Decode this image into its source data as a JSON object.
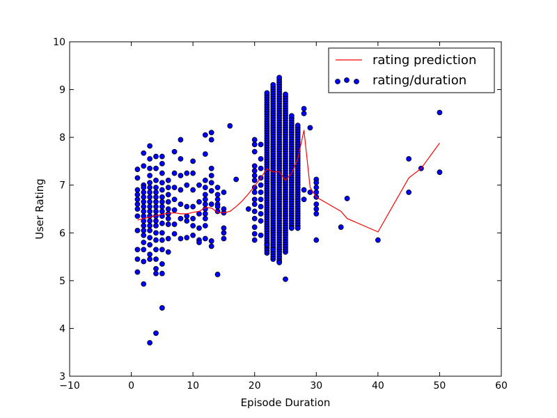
{
  "chart_data": {
    "type": "scatter",
    "title": "",
    "xlabel": "Episode Duration",
    "ylabel": "User Rating",
    "xlim": [
      -10,
      60
    ],
    "ylim": [
      3,
      10
    ],
    "xticks": [
      -10,
      0,
      10,
      20,
      30,
      40,
      50,
      60
    ],
    "yticks": [
      3,
      4,
      5,
      6,
      7,
      8,
      9,
      10
    ],
    "xtick_labels": [
      "−10",
      "0",
      "10",
      "20",
      "30",
      "40",
      "50",
      "60"
    ],
    "ytick_labels": [
      "3",
      "4",
      "5",
      "6",
      "7",
      "8",
      "9",
      "10"
    ],
    "grid": false,
    "legend_position": "top-right",
    "colors": {
      "prediction": "#ff0000",
      "points": "#0000ff",
      "point_edge": "#000000"
    },
    "series": [
      {
        "name": "rating prediction",
        "type": "line",
        "x": [
          1,
          2,
          3,
          4,
          5,
          6,
          7,
          8,
          9,
          10,
          11,
          12,
          13,
          14,
          15,
          16,
          17,
          18,
          19,
          20,
          21,
          22,
          23,
          24,
          25,
          26,
          27,
          28,
          29,
          30,
          32,
          34,
          35,
          40,
          45,
          47,
          50
        ],
        "y": [
          6.27,
          6.3,
          6.33,
          6.36,
          6.39,
          6.41,
          6.42,
          6.4,
          6.4,
          6.43,
          6.45,
          6.53,
          6.52,
          6.43,
          6.42,
          6.45,
          6.55,
          6.67,
          6.82,
          6.98,
          7.15,
          7.34,
          7.28,
          7.28,
          7.1,
          7.25,
          7.55,
          8.15,
          6.95,
          6.75,
          6.6,
          6.45,
          6.3,
          6.02,
          7.15,
          7.35,
          7.88
        ]
      },
      {
        "name": "rating/duration",
        "type": "scatter",
        "points": [
          [
            1,
            7.33
          ],
          [
            1,
            7.15
          ],
          [
            1,
            6.9
          ],
          [
            1,
            6.8
          ],
          [
            1,
            6.7
          ],
          [
            1,
            6.6
          ],
          [
            1,
            6.5
          ],
          [
            1,
            6.35
          ],
          [
            1,
            6.05
          ],
          [
            1,
            5.65
          ],
          [
            1,
            5.45
          ],
          [
            1,
            5.18
          ],
          [
            2,
            7.67
          ],
          [
            2,
            7.4
          ],
          [
            2,
            7.0
          ],
          [
            2,
            6.95
          ],
          [
            2,
            6.85
          ],
          [
            2,
            6.75
          ],
          [
            2,
            6.65
          ],
          [
            2,
            6.55
          ],
          [
            2,
            6.45
          ],
          [
            2,
            6.35
          ],
          [
            2,
            6.25
          ],
          [
            2,
            6.15
          ],
          [
            2,
            6.05
          ],
          [
            2,
            5.95
          ],
          [
            2,
            5.8
          ],
          [
            2,
            5.65
          ],
          [
            2,
            5.4
          ],
          [
            2,
            4.93
          ],
          [
            3,
            7.82
          ],
          [
            3,
            7.55
          ],
          [
            3,
            7.35
          ],
          [
            3,
            7.2
          ],
          [
            3,
            7.05
          ],
          [
            3,
            6.95
          ],
          [
            3,
            6.85
          ],
          [
            3,
            6.75
          ],
          [
            3,
            6.65
          ],
          [
            3,
            6.55
          ],
          [
            3,
            6.45
          ],
          [
            3,
            6.35
          ],
          [
            3,
            6.25
          ],
          [
            3,
            6.15
          ],
          [
            3,
            6.05
          ],
          [
            3,
            5.9
          ],
          [
            3,
            5.75
          ],
          [
            3,
            5.55
          ],
          [
            3,
            5.45
          ],
          [
            3,
            3.7
          ],
          [
            4,
            7.6
          ],
          [
            4,
            7.35
          ],
          [
            4,
            7.1
          ],
          [
            4,
            6.95
          ],
          [
            4,
            6.85
          ],
          [
            4,
            6.75
          ],
          [
            4,
            6.65
          ],
          [
            4,
            6.55
          ],
          [
            4,
            6.45
          ],
          [
            4,
            6.35
          ],
          [
            4,
            6.25
          ],
          [
            4,
            6.15
          ],
          [
            4,
            6.0
          ],
          [
            4,
            5.85
          ],
          [
            4,
            5.65
          ],
          [
            4,
            5.45
          ],
          [
            4,
            5.25
          ],
          [
            4,
            5.15
          ],
          [
            4,
            3.9
          ],
          [
            5,
            7.6
          ],
          [
            5,
            7.45
          ],
          [
            5,
            7.25
          ],
          [
            5,
            7.05
          ],
          [
            5,
            6.9
          ],
          [
            5,
            6.75
          ],
          [
            5,
            6.65
          ],
          [
            5,
            6.55
          ],
          [
            5,
            6.45
          ],
          [
            5,
            6.35
          ],
          [
            5,
            6.2
          ],
          [
            5,
            6.0
          ],
          [
            5,
            5.85
          ],
          [
            5,
            5.65
          ],
          [
            5,
            5.35
          ],
          [
            5,
            5.15
          ],
          [
            5,
            4.43
          ],
          [
            6,
            7.1
          ],
          [
            6,
            6.95
          ],
          [
            6,
            6.8
          ],
          [
            6,
            6.65
          ],
          [
            6,
            6.5
          ],
          [
            6,
            6.4
          ],
          [
            6,
            6.3
          ],
          [
            6,
            6.18
          ],
          [
            6,
            5.88
          ],
          [
            6,
            5.6
          ],
          [
            7,
            7.7
          ],
          [
            7,
            7.25
          ],
          [
            7,
            6.95
          ],
          [
            7,
            6.7
          ],
          [
            7,
            6.48
          ],
          [
            7,
            6.18
          ],
          [
            7,
            5.98
          ],
          [
            8,
            7.95
          ],
          [
            8,
            7.55
          ],
          [
            8,
            7.2
          ],
          [
            8,
            6.9
          ],
          [
            8,
            6.6
          ],
          [
            8,
            6.3
          ],
          [
            8,
            5.88
          ],
          [
            9,
            7.25
          ],
          [
            9,
            7.0
          ],
          [
            9,
            6.55
          ],
          [
            9,
            6.35
          ],
          [
            9,
            6.25
          ],
          [
            9,
            5.9
          ],
          [
            10,
            7.5
          ],
          [
            10,
            7.25
          ],
          [
            10,
            6.9
          ],
          [
            10,
            6.55
          ],
          [
            10,
            6.3
          ],
          [
            10,
            6.15
          ],
          [
            10,
            5.95
          ],
          [
            11,
            7.0
          ],
          [
            11,
            6.65
          ],
          [
            11,
            6.4
          ],
          [
            11,
            6.1
          ],
          [
            11,
            5.85
          ],
          [
            11,
            5.8
          ],
          [
            12,
            8.05
          ],
          [
            12,
            7.65
          ],
          [
            12,
            7.1
          ],
          [
            12,
            6.95
          ],
          [
            12,
            6.8
          ],
          [
            12,
            6.7
          ],
          [
            12,
            6.6
          ],
          [
            12,
            6.5
          ],
          [
            12,
            6.4
          ],
          [
            12,
            6.3
          ],
          [
            12,
            6.15
          ],
          [
            12,
            5.88
          ],
          [
            13,
            8.1
          ],
          [
            13,
            7.95
          ],
          [
            13,
            7.35
          ],
          [
            13,
            7.2
          ],
          [
            13,
            7.05
          ],
          [
            13,
            6.88
          ],
          [
            13,
            6.6
          ],
          [
            13,
            5.83
          ],
          [
            13,
            5.72
          ],
          [
            14,
            6.95
          ],
          [
            14,
            6.8
          ],
          [
            14,
            6.7
          ],
          [
            14,
            6.6
          ],
          [
            14,
            6.55
          ],
          [
            14,
            6.45
          ],
          [
            14,
            5.13
          ],
          [
            15,
            6.85
          ],
          [
            15,
            6.5
          ],
          [
            15,
            6.42
          ],
          [
            15,
            6.1
          ],
          [
            15,
            6.0
          ],
          [
            15,
            5.88
          ],
          [
            16,
            8.24
          ],
          [
            17,
            7.12
          ],
          [
            19,
            6.5
          ],
          [
            20,
            7.95
          ],
          [
            20,
            7.85
          ],
          [
            20,
            7.7
          ],
          [
            20,
            7.4
          ],
          [
            20,
            7.3
          ],
          [
            20,
            7.2
          ],
          [
            20,
            7.1
          ],
          [
            20,
            6.95
          ],
          [
            20,
            6.85
          ],
          [
            20,
            6.7
          ],
          [
            20,
            6.6
          ],
          [
            20,
            6.45
          ],
          [
            20,
            6.3
          ],
          [
            20,
            6.12
          ],
          [
            20,
            5.98
          ],
          [
            20,
            5.85
          ],
          [
            21,
            7.85
          ],
          [
            21,
            7.55
          ],
          [
            21,
            7.35
          ],
          [
            21,
            7.15
          ],
          [
            21,
            7.0
          ],
          [
            21,
            6.85
          ],
          [
            21,
            6.7
          ],
          [
            21,
            6.55
          ],
          [
            21,
            6.4
          ],
          [
            21,
            6.25
          ],
          [
            21,
            5.95
          ],
          [
            28,
            8.6
          ],
          [
            28,
            8.5
          ],
          [
            28,
            6.9
          ],
          [
            28,
            6.7
          ],
          [
            29,
            8.2
          ],
          [
            29,
            6.85
          ],
          [
            30,
            7.12
          ],
          [
            30,
            7.05
          ],
          [
            30,
            6.95
          ],
          [
            30,
            6.85
          ],
          [
            30,
            6.75
          ],
          [
            30,
            6.6
          ],
          [
            30,
            6.5
          ],
          [
            30,
            6.4
          ],
          [
            30,
            5.85
          ],
          [
            34,
            6.12
          ],
          [
            35,
            6.72
          ],
          [
            40,
            5.85
          ],
          [
            45,
            7.55
          ],
          [
            45,
            6.85
          ],
          [
            47,
            7.35
          ],
          [
            50,
            8.52
          ],
          [
            50,
            7.27
          ]
        ],
        "columns": [
          {
            "x": 22,
            "ymin": 5.58,
            "ymax": 8.95,
            "step": 0.05,
            "extras": [
              5.75
            ]
          },
          {
            "x": 23,
            "ymin": 5.45,
            "ymax": 9.12,
            "step": 0.05,
            "extras": [
              5.65
            ]
          },
          {
            "x": 24,
            "ymin": 5.4,
            "ymax": 9.27,
            "step": 0.05,
            "extras": [
              5.38
            ]
          },
          {
            "x": 25,
            "ymin": 5.6,
            "ymax": 8.92,
            "step": 0.05,
            "extras": [
              5.03
            ]
          },
          {
            "x": 26,
            "ymin": 6.1,
            "ymax": 8.48,
            "step": 0.05,
            "extras": [
              6.1
            ]
          },
          {
            "x": 27,
            "ymin": 6.1,
            "ymax": 8.28,
            "step": 0.05,
            "extras": [
              6.1
            ]
          }
        ]
      }
    ]
  }
}
